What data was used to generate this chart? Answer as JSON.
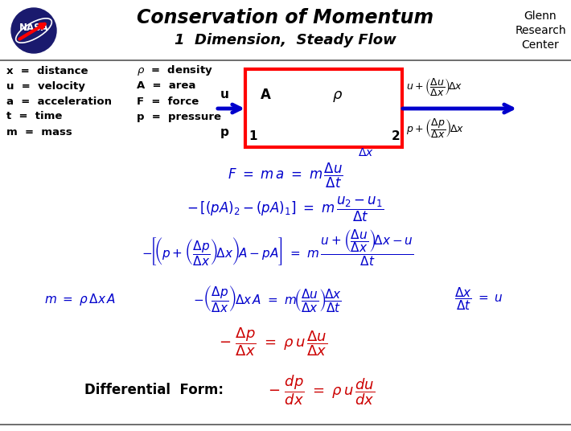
{
  "title1": "Conservation of Momentum",
  "title2": "1  Dimension,  Steady Flow",
  "glenn_text": "Glenn\nResearch\nCenter",
  "bg_color": "#ffffff",
  "blue": "#0000cc",
  "red": "#cc0000",
  "black": "#000000"
}
